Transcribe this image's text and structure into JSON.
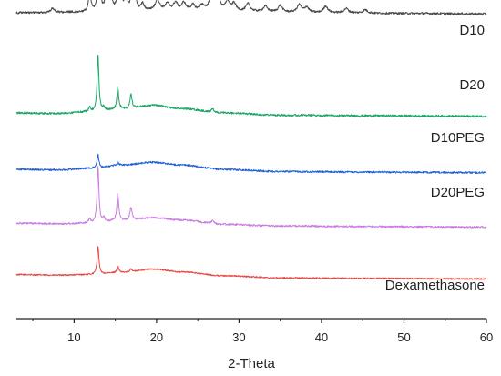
{
  "chart_data": {
    "type": "line",
    "xlabel": "2-Theta",
    "ylabel": "",
    "xlim": [
      3,
      60
    ],
    "xticks": [
      10,
      20,
      30,
      40,
      50,
      60
    ],
    "grid": false,
    "legend": "inline labels at right end of each trace",
    "series": [
      {
        "name": "D10",
        "color": "#e8463f",
        "baseline": 0,
        "noise": 0.6,
        "points": [
          [
            3,
            32
          ],
          [
            8,
            31.5
          ],
          [
            12,
            32
          ],
          [
            16,
            34
          ],
          [
            19.5,
            37
          ],
          [
            23,
            34.5
          ],
          [
            28,
            31
          ],
          [
            35,
            29
          ],
          [
            45,
            28.5
          ],
          [
            60,
            28
          ]
        ],
        "peaks": [
          [
            12.9,
            26,
            0.13
          ],
          [
            15.3,
            6,
            0.13
          ],
          [
            16.9,
            3,
            0.15
          ]
        ]
      },
      {
        "name": "D20",
        "color": "#c97be0",
        "baseline": 0,
        "noise": 0.8,
        "points": [
          [
            3,
            29
          ],
          [
            8,
            28.5
          ],
          [
            12,
            29
          ],
          [
            16,
            31.5
          ],
          [
            19.5,
            34
          ],
          [
            23,
            32
          ],
          [
            28,
            28
          ],
          [
            35,
            26.5
          ],
          [
            45,
            26
          ],
          [
            60,
            25.5
          ]
        ],
        "peaks": [
          [
            12.9,
            52,
            0.13
          ],
          [
            15.3,
            25,
            0.13
          ],
          [
            16.9,
            12,
            0.15
          ],
          [
            11.9,
            4,
            0.15
          ],
          [
            13.6,
            4,
            0.15
          ],
          [
            26.8,
            3,
            0.2
          ]
        ]
      },
      {
        "name": "D10PEG",
        "color": "#1f5fd6",
        "baseline": 0,
        "noise": 0.8,
        "points": [
          [
            3,
            30
          ],
          [
            8,
            29.5
          ],
          [
            12,
            31
          ],
          [
            16,
            34
          ],
          [
            19.5,
            36.5
          ],
          [
            23,
            34
          ],
          [
            28,
            30
          ],
          [
            35,
            28
          ],
          [
            45,
            27.5
          ],
          [
            60,
            27
          ]
        ],
        "peaks": [
          [
            12.9,
            12,
            0.13
          ],
          [
            15.3,
            3,
            0.13
          ]
        ]
      },
      {
        "name": "D20PEG",
        "color": "#1aa667",
        "baseline": 0,
        "noise": 0.9,
        "points": [
          [
            3,
            30
          ],
          [
            8,
            29.5
          ],
          [
            12,
            31
          ],
          [
            16,
            33.5
          ],
          [
            19.5,
            37
          ],
          [
            23,
            34
          ],
          [
            28,
            30
          ],
          [
            35,
            28
          ],
          [
            45,
            27.5
          ],
          [
            60,
            27
          ]
        ],
        "peaks": [
          [
            12.9,
            52,
            0.13
          ],
          [
            15.3,
            20,
            0.13
          ],
          [
            16.9,
            13,
            0.15
          ],
          [
            11.9,
            4,
            0.15
          ],
          [
            13.6,
            3,
            0.15
          ],
          [
            26.8,
            3,
            0.2
          ]
        ]
      },
      {
        "name": "Dexamethasone",
        "color": "#4a4a4a",
        "baseline": 0,
        "noise": 0.9,
        "points": [
          [
            3,
            30
          ],
          [
            10,
            30.5
          ],
          [
            20,
            32
          ],
          [
            30,
            31
          ],
          [
            40,
            30
          ],
          [
            50,
            29.5
          ],
          [
            60,
            29
          ]
        ],
        "peaks": [
          [
            7.4,
            4,
            0.2
          ],
          [
            11.9,
            18,
            0.16
          ],
          [
            13.0,
            67,
            0.13
          ],
          [
            14.0,
            30,
            0.15
          ],
          [
            14.4,
            25,
            0.15
          ],
          [
            15.5,
            82,
            0.13
          ],
          [
            16.3,
            15,
            0.15
          ],
          [
            17.2,
            74,
            0.13
          ],
          [
            18.3,
            6,
            0.2
          ],
          [
            20.1,
            10,
            0.3
          ],
          [
            21.3,
            6,
            0.3
          ],
          [
            22.3,
            7,
            0.3
          ],
          [
            23.3,
            7,
            0.3
          ],
          [
            24.4,
            5,
            0.3
          ],
          [
            25.5,
            5,
            0.3
          ],
          [
            26.7,
            18,
            0.3
          ],
          [
            27.5,
            11,
            0.3
          ],
          [
            28.6,
            9,
            0.3
          ],
          [
            29.4,
            7,
            0.3
          ],
          [
            31.1,
            7,
            0.3
          ],
          [
            33.2,
            5,
            0.3
          ],
          [
            35.0,
            6,
            0.3
          ],
          [
            37.3,
            7,
            0.3
          ],
          [
            38.2,
            5,
            0.3
          ],
          [
            40.5,
            6,
            0.3
          ],
          [
            43.0,
            4,
            0.3
          ],
          [
            45.3,
            3,
            0.3
          ]
        ]
      }
    ]
  }
}
